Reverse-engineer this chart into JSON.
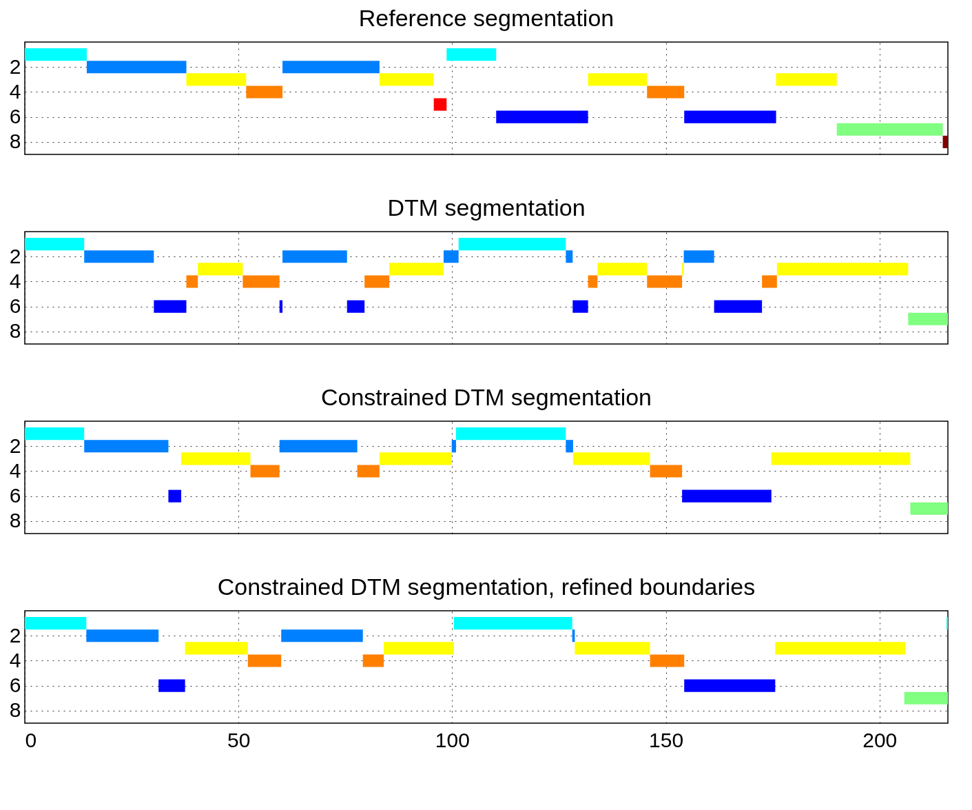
{
  "chart_data": [
    {
      "type": "bar",
      "orientation": "horizontal",
      "title": "Reference segmentation",
      "categories": [
        null,
        "2",
        null,
        "4",
        null,
        "6",
        null,
        "8"
      ],
      "xlim": [
        0,
        216
      ],
      "xticks": [
        0,
        50,
        100,
        150,
        200
      ],
      "grid": true,
      "tick_labels": "y",
      "series": [
        {
          "colors": [
            "#00ffff",
            "#0080ff",
            "#ffff00",
            "#ff8000",
            "#ff0000",
            "#0000ff",
            "#80ff80",
            "#800000"
          ],
          "base": [
            0,
            14.5,
            37.8,
            51.8,
            95.7,
            110.3,
            190,
            214.8
          ],
          "values": [
            14.5,
            23.3,
            14,
            8.5,
            3,
            21.5,
            24.8,
            1.2
          ]
        },
        {
          "colors": [
            "#00ffff",
            "#0080ff",
            "#ffff00",
            "#ff8000",
            null,
            "#0000ff",
            null,
            null
          ],
          "base": [
            98.7,
            60.3,
            83,
            145.6,
            null,
            154.3,
            null,
            null
          ],
          "values": [
            11.6,
            22.7,
            12.7,
            8.7,
            null,
            21.5,
            null,
            null
          ]
        },
        {
          "colors": [
            null,
            null,
            "#ffff00",
            null,
            null,
            null,
            null,
            null
          ],
          "base": [
            null,
            null,
            131.8,
            null,
            null,
            null,
            null,
            null
          ],
          "values": [
            null,
            null,
            13.8,
            null,
            null,
            null,
            null,
            null
          ]
        },
        {
          "colors": [
            null,
            null,
            "#ffff00",
            null,
            null,
            null,
            null,
            null
          ],
          "base": [
            null,
            null,
            175.8,
            null,
            null,
            null,
            null,
            null
          ],
          "values": [
            null,
            null,
            14.2,
            null,
            null,
            null,
            null,
            null
          ]
        }
      ]
    },
    {
      "type": "bar",
      "orientation": "horizontal",
      "title": "DTM segmentation",
      "categories": [
        null,
        "2",
        null,
        "4",
        null,
        "6",
        null,
        "8"
      ],
      "xlim": [
        0,
        216
      ],
      "xticks": [
        0,
        50,
        100,
        150,
        200
      ],
      "grid": true,
      "tick_labels": "y",
      "series": [
        {
          "colors": [
            "#00ffff",
            "#0080ff",
            "#ffff00",
            "#ff8000",
            null,
            "#0000ff",
            "#80ff80",
            null
          ],
          "base": [
            0,
            13.9,
            40.5,
            37.8,
            null,
            30.2,
            206.7,
            null
          ],
          "values": [
            13.9,
            16.3,
            10.5,
            2.7,
            null,
            7.6,
            9.3,
            null
          ]
        },
        {
          "colors": [
            "#00ffff",
            "#0080ff",
            "#ffff00",
            "#ff8000",
            null,
            "#0000ff",
            null,
            null
          ],
          "base": [
            101.5,
            60.3,
            85.3,
            51,
            null,
            59.6,
            null,
            null
          ],
          "values": [
            25.1,
            15.1,
            12.7,
            8.6,
            null,
            0.7,
            null,
            null
          ]
        },
        {
          "colors": [
            null,
            "#0080ff",
            "#ffff00",
            "#ff8000",
            null,
            "#0000ff",
            null,
            null
          ],
          "base": [
            null,
            98,
            134,
            79.5,
            null,
            75.4,
            null,
            null
          ],
          "values": [
            null,
            3.5,
            11.6,
            5.8,
            null,
            4.1,
            null,
            null
          ]
        },
        {
          "colors": [
            null,
            "#0080ff",
            "#ffff00",
            "#ff8000",
            null,
            "#0000ff",
            null,
            null
          ],
          "base": [
            null,
            126.6,
            153.8,
            131.8,
            null,
            128.2,
            null,
            null
          ],
          "values": [
            null,
            1.6,
            0.4,
            2.2,
            null,
            3.6,
            null,
            null
          ]
        },
        {
          "colors": [
            null,
            "#0080ff",
            "#ffff00",
            "#ff8000",
            null,
            "#0000ff",
            null,
            null
          ],
          "base": [
            null,
            154.2,
            176,
            145.6,
            null,
            161.3,
            null,
            null
          ],
          "values": [
            null,
            7.1,
            30.7,
            8.2,
            null,
            11.2,
            null,
            null
          ]
        },
        {
          "colors": [
            null,
            null,
            null,
            "#ff8000",
            null,
            null,
            null,
            null
          ],
          "base": [
            null,
            null,
            null,
            172.5,
            null,
            null,
            null,
            null
          ],
          "values": [
            null,
            null,
            null,
            3.5,
            null,
            null,
            null,
            null
          ]
        }
      ]
    },
    {
      "type": "bar",
      "orientation": "horizontal",
      "title": "Constrained DTM segmentation",
      "categories": [
        null,
        "2",
        null,
        "4",
        null,
        "6",
        null,
        "8"
      ],
      "xlim": [
        0,
        216
      ],
      "xticks": [
        0,
        50,
        100,
        150,
        200
      ],
      "grid": true,
      "tick_labels": "y",
      "series": [
        {
          "colors": [
            "#00ffff",
            "#0080ff",
            "#ffff00",
            "#ff8000",
            null,
            "#0000ff",
            "#80ff80",
            null
          ],
          "base": [
            0,
            13.9,
            36.6,
            52.8,
            null,
            33.6,
            207.2,
            null
          ],
          "values": [
            13.9,
            19.7,
            16.2,
            6.8,
            null,
            3,
            8.8,
            null
          ]
        },
        {
          "colors": [
            "#00ffff",
            "#0080ff",
            "#ffff00",
            "#ff8000",
            null,
            "#0000ff",
            null,
            null
          ],
          "base": [
            100.9,
            59.6,
            83,
            77.8,
            null,
            153.8,
            null,
            null
          ],
          "values": [
            25.7,
            18.2,
            16.9,
            5.2,
            null,
            20.9,
            null,
            null
          ]
        },
        {
          "colors": [
            null,
            "#0080ff",
            "#ffff00",
            "#ff8000",
            null,
            null,
            null,
            null
          ],
          "base": [
            null,
            99.9,
            128.3,
            146.3,
            null,
            null,
            null,
            null
          ],
          "values": [
            null,
            1,
            18,
            7.5,
            null,
            null,
            null,
            null
          ]
        },
        {
          "colors": [
            null,
            "#0080ff",
            "#ffff00",
            null,
            null,
            null,
            null,
            null
          ],
          "base": [
            null,
            126.6,
            174.7,
            null,
            null,
            null,
            null,
            null
          ],
          "values": [
            null,
            1.7,
            32.5,
            null,
            null,
            null,
            null,
            null
          ]
        }
      ]
    },
    {
      "type": "bar",
      "orientation": "horizontal",
      "title": "Constrained DTM segmentation, refined boundaries",
      "categories": [
        null,
        "2",
        null,
        "4",
        null,
        "6",
        null,
        "8"
      ],
      "xlim": [
        0,
        216
      ],
      "xticks": [
        0,
        50,
        100,
        150,
        200
      ],
      "grid": true,
      "series": [
        {
          "colors": [
            "#00ffff",
            "#0080ff",
            "#ffff00",
            "#ff8000",
            null,
            "#0000ff",
            "#80ff80",
            null
          ],
          "base": [
            0,
            14.4,
            37.5,
            52.2,
            null,
            31.3,
            205.8,
            null
          ],
          "values": [
            14.4,
            16.9,
            14.7,
            7.8,
            null,
            6.2,
            10.2,
            null
          ]
        },
        {
          "colors": [
            "#00ffff",
            "#0080ff",
            "#ffff00",
            "#ff8000",
            null,
            "#0000ff",
            null,
            null
          ],
          "base": [
            100.4,
            60,
            84,
            79.1,
            null,
            154.3,
            null,
            null
          ],
          "values": [
            27.7,
            19.1,
            16.4,
            4.9,
            null,
            21.3,
            null,
            null
          ]
        },
        {
          "colors": [
            "#00ffff",
            "#0080ff",
            "#ffff00",
            "#ff8000",
            null,
            null,
            null,
            null
          ],
          "base": [
            215.7,
            128.1,
            128.7,
            146.3,
            null,
            null,
            null,
            null
          ],
          "values": [
            0.3,
            0.6,
            17.6,
            8,
            null,
            null,
            null,
            null
          ]
        },
        {
          "colors": [
            null,
            null,
            "#ffff00",
            null,
            null,
            null,
            null,
            null
          ],
          "base": [
            null,
            null,
            175.6,
            null,
            null,
            null,
            null,
            null
          ],
          "values": [
            null,
            null,
            30.4,
            null,
            null,
            null,
            null,
            null
          ]
        }
      ]
    }
  ]
}
